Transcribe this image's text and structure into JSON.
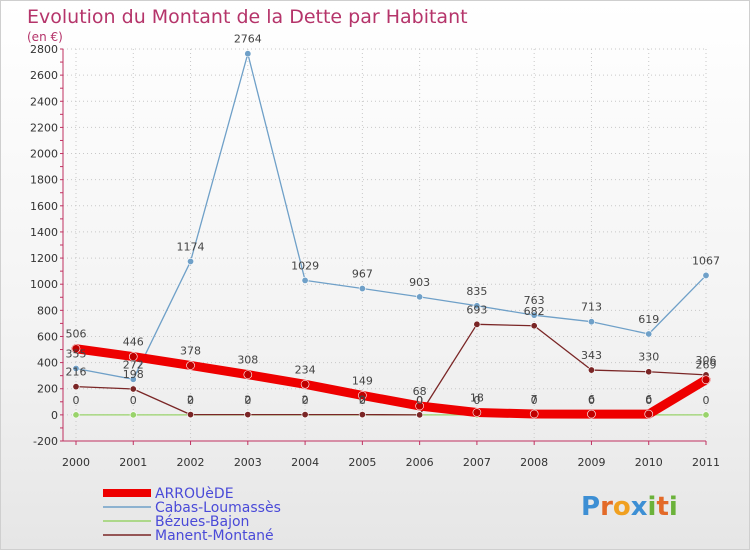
{
  "chart_data": {
    "type": "line",
    "title": "Evolution du Montant de la Dette par Habitant",
    "subtitle": "(en €)",
    "x": [
      "2000",
      "2001",
      "2002",
      "2003",
      "2004",
      "2005",
      "2006",
      "2007",
      "2008",
      "2009",
      "2010",
      "2011"
    ],
    "ylim": [
      -200,
      2800
    ],
    "yticks": [
      -200,
      0,
      200,
      400,
      600,
      800,
      1000,
      1200,
      1400,
      1600,
      1800,
      2000,
      2200,
      2400,
      2600,
      2800
    ],
    "grid": true,
    "legend_position": "bottom-left",
    "series": [
      {
        "name": "ARROUèDE",
        "color": "#ee0000",
        "values": [
          506,
          446,
          378,
          308,
          234,
          149,
          68,
          18,
          7,
          6,
          6,
          269
        ]
      },
      {
        "name": "Cabas-Loumassès",
        "color": "#6fa0c8",
        "values": [
          355,
          272,
          1174,
          2764,
          1029,
          967,
          903,
          835,
          763,
          713,
          619,
          1067
        ]
      },
      {
        "name": "Bézues-Bajon",
        "color": "#99d36b",
        "values": [
          0,
          0,
          0,
          0,
          0,
          0,
          0,
          0,
          0,
          0,
          0,
          0
        ]
      },
      {
        "name": "Manent-Montané",
        "color": "#7a2626",
        "values": [
          216,
          198,
          2,
          2,
          2,
          2,
          0,
          693,
          682,
          343,
          330,
          306
        ]
      }
    ],
    "value_labels": [
      {
        "series": "ARROUèDE",
        "labels": [
          "506",
          "446",
          "378",
          "308",
          "234",
          "149",
          "68",
          "18",
          "7",
          "6",
          "6",
          "269"
        ]
      },
      {
        "series": "Cabas-Loumassès",
        "labels": [
          "355",
          "272",
          "1174",
          "2764",
          "1029",
          "967",
          "903",
          "835",
          "763",
          "713",
          "619",
          "1067"
        ]
      },
      {
        "series": "Bézues-Bajon",
        "labels": [
          "0",
          "0",
          "0",
          "0",
          "0",
          "0",
          "0",
          "0",
          "0",
          "0",
          "0",
          "0"
        ]
      },
      {
        "series": "Manent-Montané",
        "labels": [
          "216",
          "198",
          "2",
          "2",
          "2",
          "2",
          "0",
          "693",
          "682",
          "343",
          "330",
          "306"
        ]
      }
    ]
  },
  "logo": {
    "text": "Proxiti",
    "letters": [
      "P",
      "r",
      "o",
      "x",
      "i",
      "t",
      "i"
    ]
  }
}
